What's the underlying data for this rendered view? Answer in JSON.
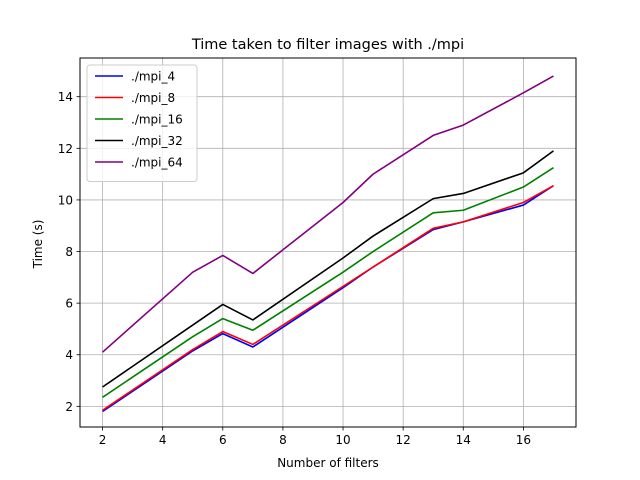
{
  "chart_data": {
    "type": "line",
    "title": "Time taken to filter images with ./mpi",
    "xlabel": "Number of filters",
    "ylabel": "Time (s)",
    "xlim": [
      1.25,
      17.75
    ],
    "ylim": [
      1.2,
      15.5
    ],
    "xticks": [
      2,
      4,
      6,
      8,
      10,
      12,
      14,
      16
    ],
    "yticks": [
      2,
      4,
      6,
      8,
      10,
      12,
      14
    ],
    "grid": true,
    "legend_position": "top-left",
    "x": [
      2,
      5,
      6,
      7,
      10,
      11,
      13,
      14,
      16,
      17
    ],
    "series": [
      {
        "name": "./mpi_4",
        "color": "#0000ff",
        "values": [
          1.8,
          4.15,
          4.82,
          4.3,
          6.6,
          7.4,
          8.85,
          9.15,
          9.8,
          10.55
        ]
      },
      {
        "name": "./mpi_8",
        "color": "#ff0000",
        "values": [
          1.85,
          4.2,
          4.9,
          4.4,
          6.65,
          7.4,
          8.9,
          9.15,
          9.9,
          10.55
        ]
      },
      {
        "name": "./mpi_16",
        "color": "#008000",
        "values": [
          2.35,
          4.7,
          5.4,
          4.95,
          7.2,
          8.0,
          9.5,
          9.6,
          10.5,
          11.25
        ]
      },
      {
        "name": "./mpi_32",
        "color": "#000000",
        "values": [
          2.75,
          5.15,
          5.95,
          5.35,
          7.75,
          8.6,
          10.05,
          10.25,
          11.05,
          11.9
        ]
      },
      {
        "name": "./mpi_64",
        "color": "#800080",
        "values": [
          4.1,
          7.2,
          7.85,
          7.15,
          9.9,
          11.0,
          12.5,
          12.9,
          14.15,
          14.8
        ]
      }
    ]
  }
}
